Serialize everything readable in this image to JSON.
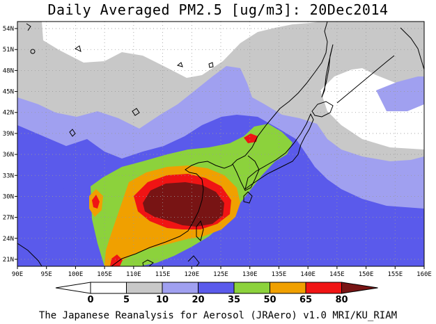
{
  "title": "Daily Averaged PM2.5 [ug/m3]: 20Dec2014",
  "footer": "The Japanese Reanalysis for Aerosol (JRAero) v1.0 MRI/KU_RIAM",
  "map": {
    "lon_range": [
      90,
      160
    ],
    "lat_range": [
      20,
      55
    ],
    "lon_ticks": [
      "90E",
      "95E",
      "100E",
      "105E",
      "110E",
      "115E",
      "120E",
      "125E",
      "130E",
      "135E",
      "140E",
      "145E",
      "150E",
      "155E",
      "160E"
    ],
    "lat_ticks": [
      "21N",
      "24N",
      "27N",
      "30N",
      "33N",
      "36N",
      "39N",
      "42N",
      "45N",
      "48N",
      "51N",
      "54N"
    ],
    "grid": true
  },
  "colorbar": {
    "levels": [
      "0",
      "5",
      "10",
      "20",
      "35",
      "50",
      "65",
      "80"
    ],
    "colors": [
      "#ffffff",
      "#ffffff",
      "#c8c8c8",
      "#a0a0f0",
      "#5a5aeb",
      "#8cd23c",
      "#f0a000",
      "#f01414",
      "#781414"
    ]
  },
  "colors": {
    "level_5": "#c8c8c8",
    "level_10": "#a0a0f0",
    "level_20": "#5a5aeb",
    "level_35": "#8cd23c",
    "level_50": "#f0a000",
    "level_65": "#f01414",
    "level_80": "#781414"
  }
}
